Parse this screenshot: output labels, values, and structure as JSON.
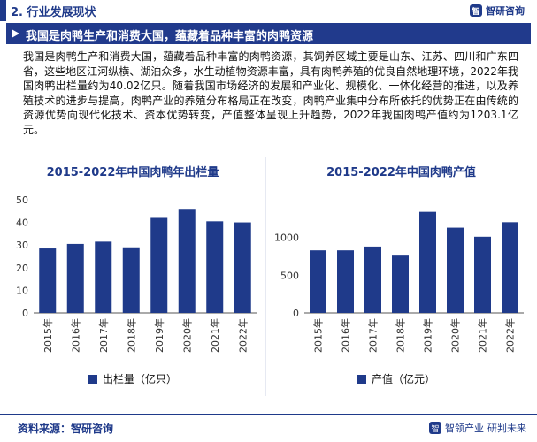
{
  "header": {
    "section_label": "2. 行业发展现状",
    "brand_name": "智研咨询",
    "brand_logo_text": "智"
  },
  "title_band": {
    "text": "我国是肉鸭生产和消费大国，蕴藏着品种丰富的肉鸭资源"
  },
  "paragraph": "我国是肉鸭生产和消费大国，蕴藏着品种丰富的肉鸭资源，其饲养区域主要是山东、江苏、四川和广东四省，这些地区江河纵横、湖泊众多，水生动植物资源丰富，具有肉鸭养殖的优良自然地理环境，2022年我国肉鸭出栏量约为40.02亿只。随着我国市场经济的发展和产业化、规模化、一体化经营的推进，以及养殖技术的进步与提高，肉鸭产业的养殖分布格局正在改变，肉鸭产业集中分布所依托的优势正在由传统的资源优势向现代化技术、资本优势转变，产值整体呈现上升趋势，2022年我国肉鸭产值约为1203.1亿元。",
  "footer": {
    "source": "资料来源：智研咨询",
    "brand_left": "智领产业",
    "brand_right": "研判未来"
  },
  "colors": {
    "accent": "#1f3a8a",
    "bar": "#1f3a8a"
  },
  "chart_data": [
    {
      "type": "bar",
      "title": "2015-2022年中国肉鸭年出栏量",
      "categories": [
        "2015年",
        "2016年",
        "2017年",
        "2018年",
        "2019年",
        "2020年",
        "2021年",
        "2022年"
      ],
      "series": [
        {
          "name": "出栏量（亿只）",
          "values": [
            28.5,
            30.5,
            31.5,
            29,
            42,
            46,
            40.5,
            40.02
          ]
        }
      ],
      "ylim": [
        0,
        50
      ],
      "yticks": [
        0,
        10,
        20,
        30,
        40,
        50
      ],
      "grid": false,
      "legend": "bottom"
    },
    {
      "type": "bar",
      "title": "2015-2022年中国肉鸭产值",
      "categories": [
        "2015年",
        "2016年",
        "2017年",
        "2018年",
        "2019年",
        "2020年",
        "2021年",
        "2022年"
      ],
      "series": [
        {
          "name": "产值（亿元）",
          "values": [
            830,
            830,
            880,
            760,
            1340,
            1130,
            1010,
            1203.1
          ]
        }
      ],
      "ylim": [
        0,
        1500
      ],
      "yticks": [
        0,
        500,
        1000
      ],
      "grid": false,
      "legend": "bottom"
    }
  ]
}
